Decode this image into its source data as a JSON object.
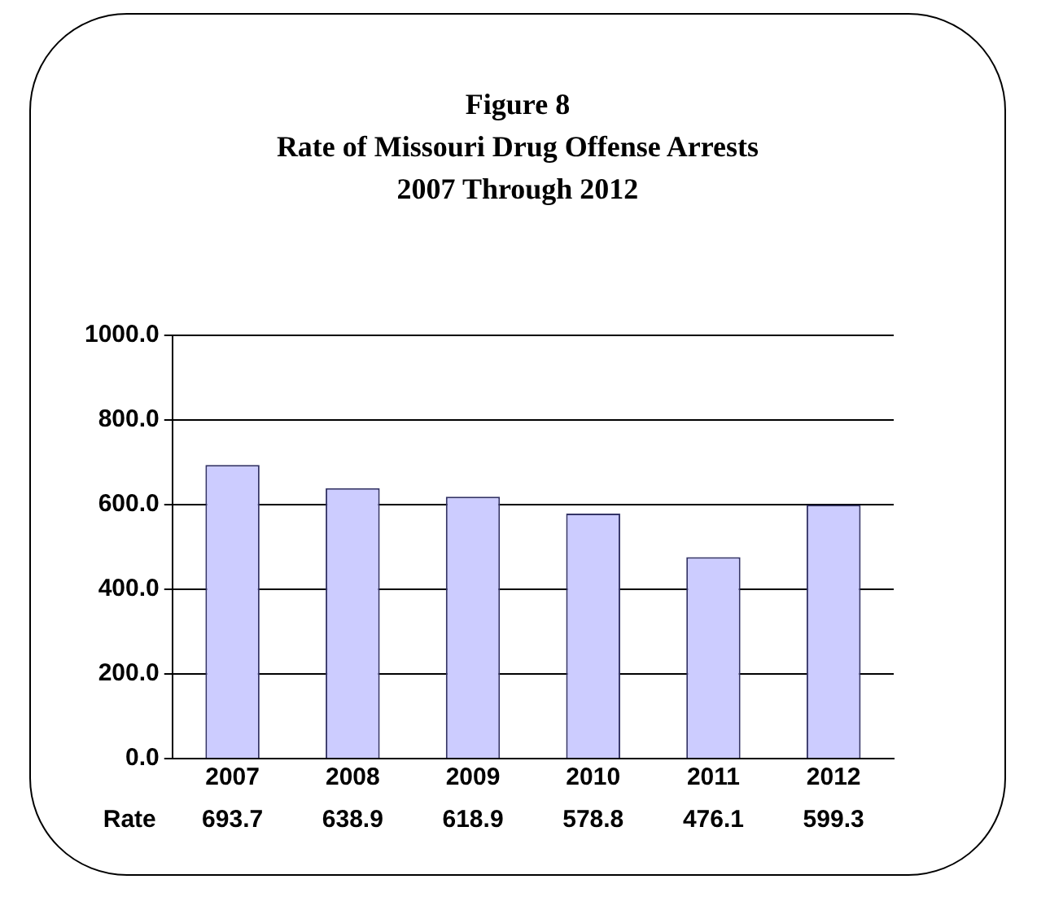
{
  "chart_data": {
    "type": "bar",
    "title": "Figure 8\nRate of Missouri Drug Offense Arrests\n2007 Through 2012",
    "categories": [
      "2007",
      "2008",
      "2009",
      "2010",
      "2011",
      "2012"
    ],
    "series": [
      {
        "name": "Rate",
        "color": "#ccccff",
        "values": [
          693.7,
          638.9,
          618.9,
          578.8,
          476.1,
          599.3
        ]
      }
    ],
    "ylim": [
      0,
      1000
    ],
    "yticks": [
      {
        "value": 0,
        "label": "0.0"
      },
      {
        "value": 200,
        "label": "200.0"
      },
      {
        "value": 400,
        "label": "400.0"
      },
      {
        "value": 600,
        "label": "600.0"
      },
      {
        "value": 800,
        "label": "800.0"
      },
      {
        "value": 1000,
        "label": "1000.0"
      }
    ],
    "grid": "y",
    "legend": false,
    "data_labels": true
  }
}
